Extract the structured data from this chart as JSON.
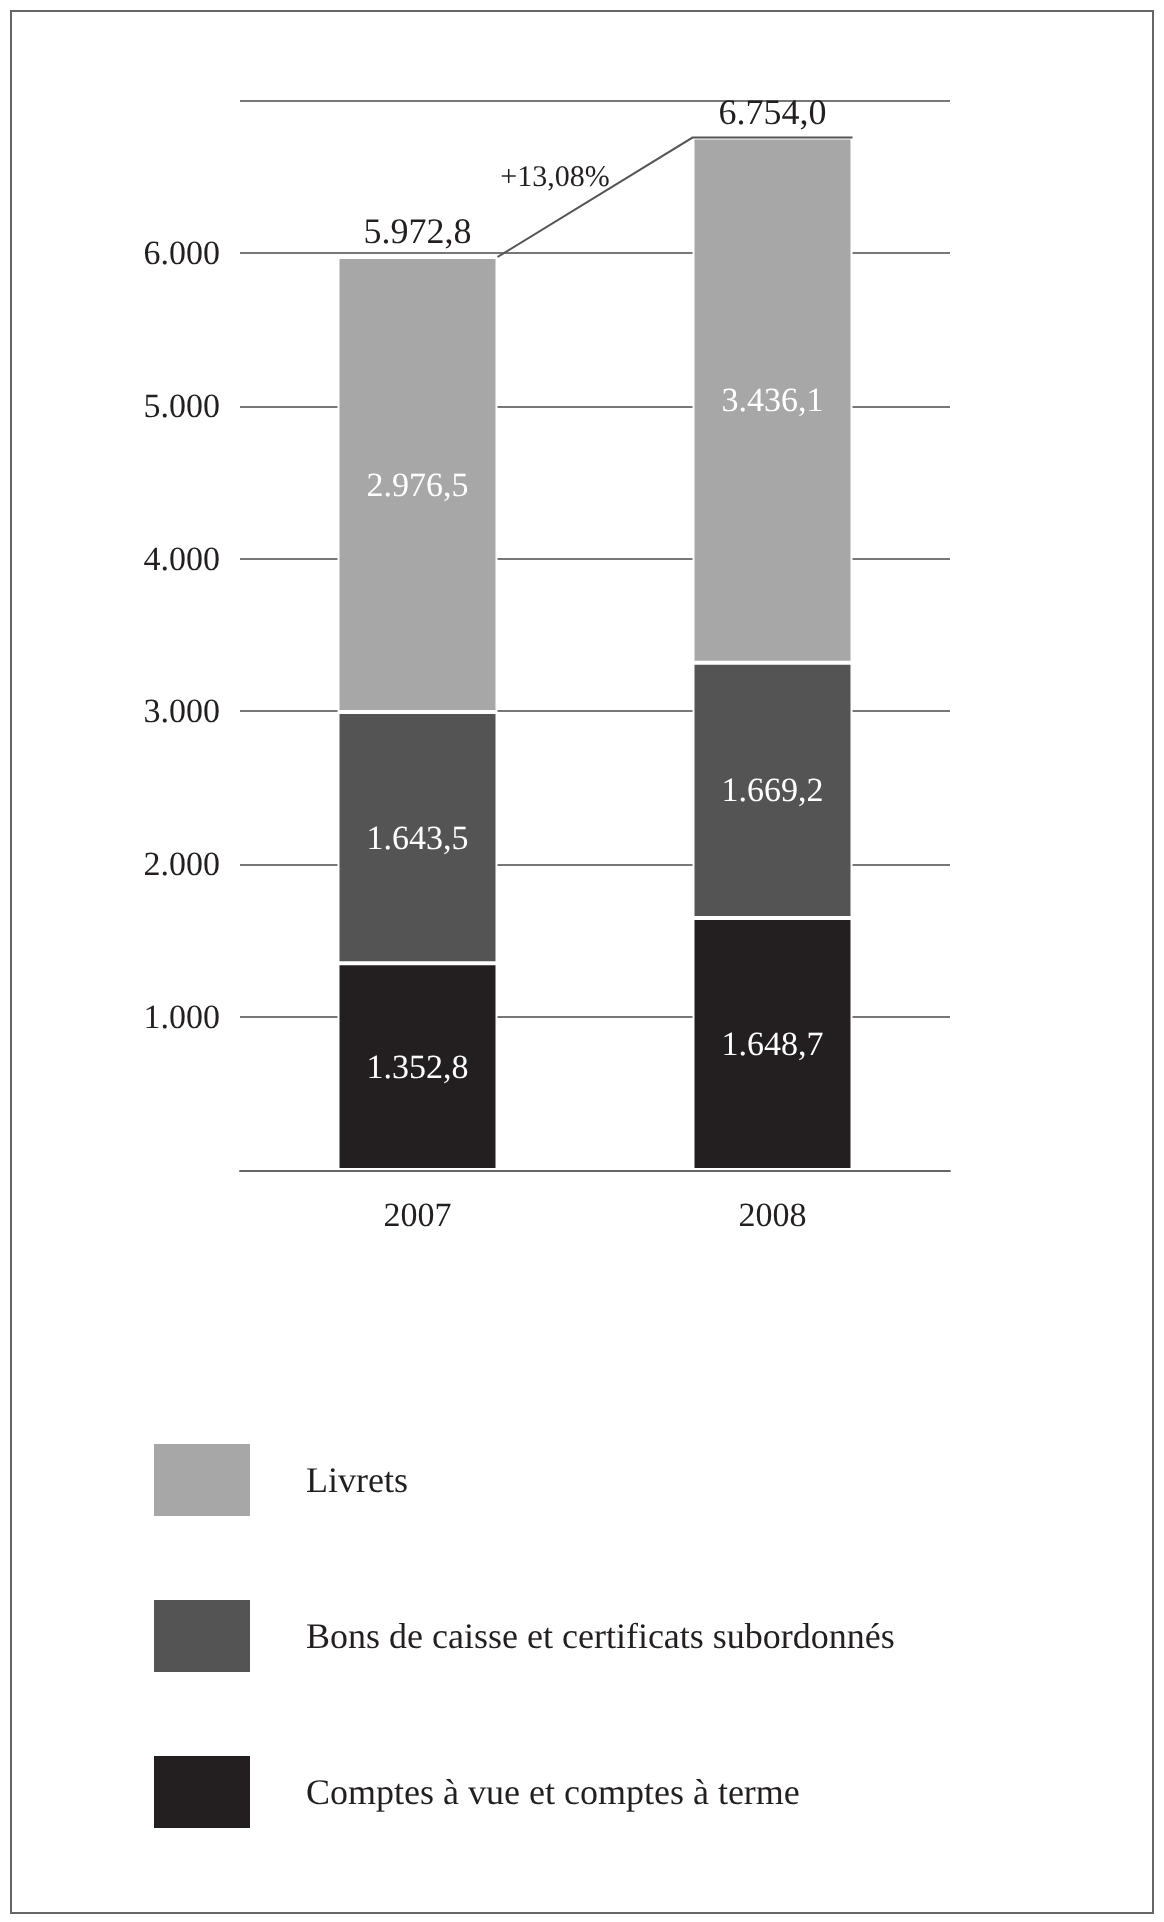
{
  "chart_data": {
    "type": "bar",
    "stacked": true,
    "categories": [
      "2007",
      "2008"
    ],
    "series": [
      {
        "name": "Comptes à vue et comptes à terme",
        "color": "#231f20",
        "values": [
          1352.8,
          1648.7
        ],
        "value_labels": [
          "1.352,8",
          "1.648,7"
        ]
      },
      {
        "name": "Bons de caisse et certificats subordonnés",
        "color": "#545454",
        "values": [
          1643.5,
          1669.2
        ],
        "value_labels": [
          "1.643,5",
          "1.669,2"
        ]
      },
      {
        "name": "Livrets",
        "color": "#a7a7a8",
        "values": [
          2976.5,
          3436.1
        ],
        "value_labels": [
          "2.976,5",
          "3.436,1"
        ]
      }
    ],
    "totals": [
      "5.972,8",
      "6.754,0"
    ],
    "annotations": [
      "+13,08%"
    ],
    "ylim": [
      0,
      7000
    ],
    "yticks": [
      {
        "value": 1000,
        "label": "1.000"
      },
      {
        "value": 2000,
        "label": "2.000"
      },
      {
        "value": 3000,
        "label": "3.000"
      },
      {
        "value": 4000,
        "label": "4.000"
      },
      {
        "value": 5000,
        "label": "5.000"
      },
      {
        "value": 6000,
        "label": "6.000"
      }
    ],
    "grid": "y",
    "legend": "bottom"
  }
}
